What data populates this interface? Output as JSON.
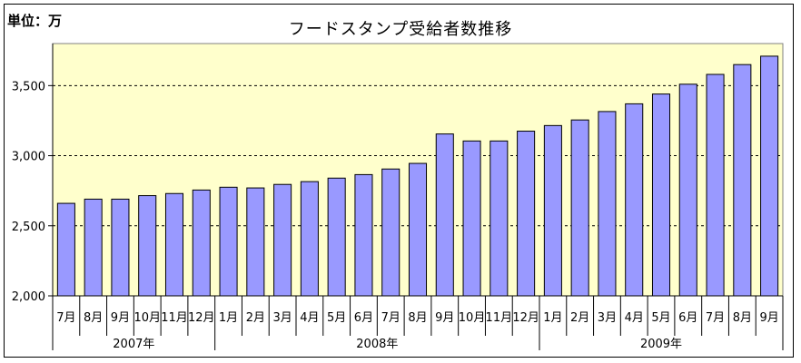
{
  "chart_data": {
    "type": "bar",
    "title": "フードスタンプ受給者数推移",
    "unit_label": "単位：万",
    "ylim": [
      2000,
      3800
    ],
    "yticks": [
      2000,
      2500,
      3000,
      3500
    ],
    "ytick_labels": [
      "2,000",
      "2,500",
      "3,000",
      "3,500"
    ],
    "grid": "dashed horizontal",
    "categories": [
      "7月",
      "8月",
      "9月",
      "10月",
      "11月",
      "12月",
      "1月",
      "2月",
      "3月",
      "4月",
      "5月",
      "6月",
      "7月",
      "8月",
      "9月",
      "10月",
      "11月",
      "12月",
      "1月",
      "2月",
      "3月",
      "4月",
      "5月",
      "6月",
      "7月",
      "8月",
      "9月"
    ],
    "values": [
      2660,
      2690,
      2690,
      2715,
      2730,
      2755,
      2775,
      2770,
      2795,
      2815,
      2840,
      2865,
      2905,
      2945,
      3155,
      3105,
      3105,
      3175,
      3215,
      3255,
      3315,
      3370,
      3440,
      3510,
      3580,
      3650,
      3710
    ],
    "year_groups": [
      {
        "label": "2007年",
        "count": 6
      },
      {
        "label": "2008年",
        "count": 12
      },
      {
        "label": "2009年",
        "count": 9
      }
    ],
    "colors": {
      "plot_bg": "#ffffcc",
      "bar_fill": "#9999ff",
      "bar_stroke": "#000000",
      "grid": "#000000"
    }
  }
}
